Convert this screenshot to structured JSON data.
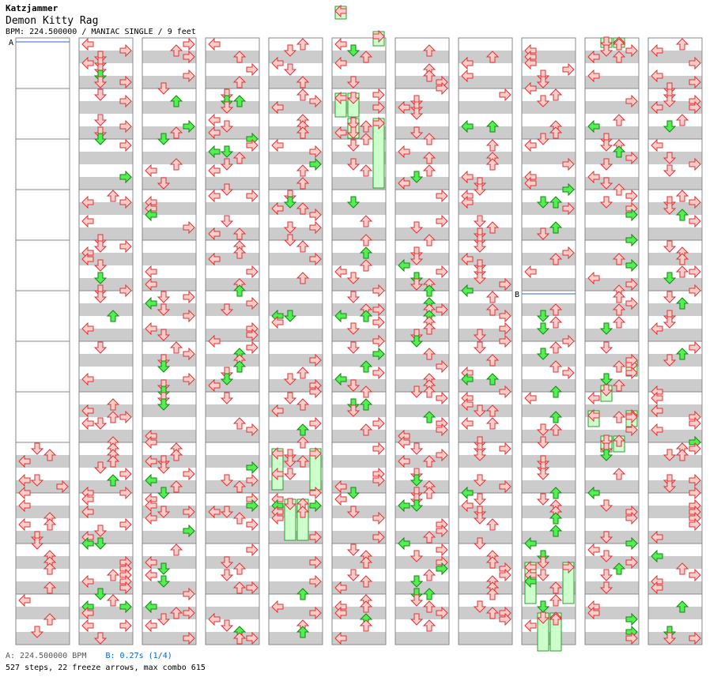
{
  "header": {
    "artist": "Katzjammer",
    "song_title": "Demon Kitty Rag",
    "meta": "BPM: 224.500000 / MANIAC SINGLE / 9 feet"
  },
  "markers": [
    {
      "label": "A",
      "column": 0,
      "measure": 0
    },
    {
      "label": "B",
      "column": 8,
      "measure": 5
    }
  ],
  "footer": {
    "bpm_legend": "A: 224.500000 BPM",
    "stop_legend": "B: 0.27s (1/4)",
    "stats": "527 steps, 22 freeze arrows, max combo 615"
  },
  "colors": {
    "arrow_normal": "#ffcccc",
    "arrow_normal_stroke": "#dd3333",
    "arrow_green": "#55ee55",
    "arrow_green_stroke": "#118811",
    "freeze_fill": "#ccffcc",
    "freeze_stroke": "#339933",
    "stripe": "#cccccc",
    "marker_line": "#3366cc"
  }
}
